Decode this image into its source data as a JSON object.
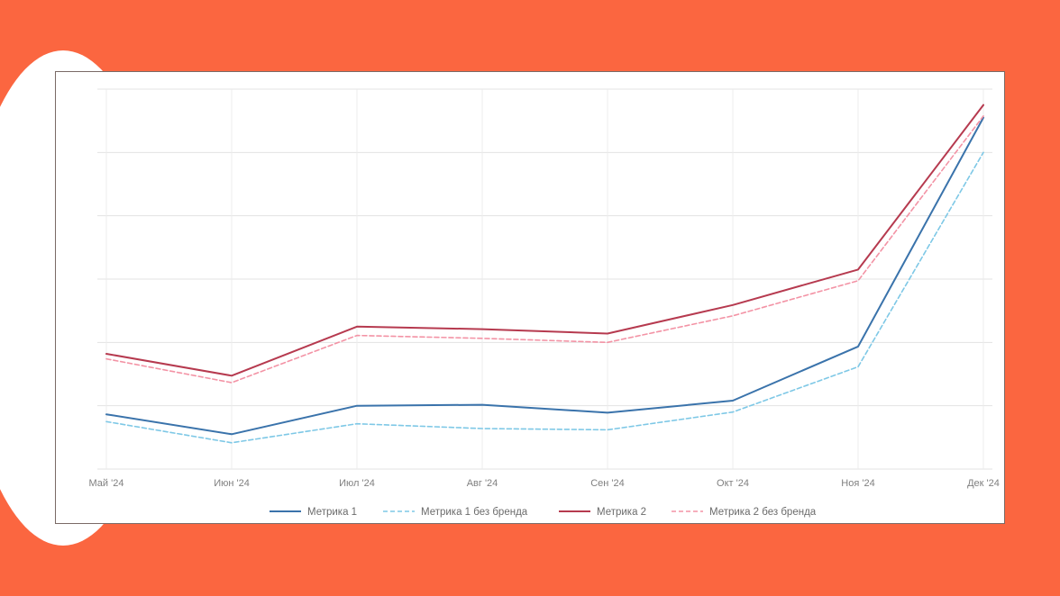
{
  "chart_data": {
    "type": "line",
    "categories": [
      "Май '24",
      "Июн '24",
      "Июл '24",
      "Авг '24",
      "Сен '24",
      "Окт '24",
      "Ноя '24",
      "Дек '24"
    ],
    "ylim": [
      0,
      120
    ],
    "grid": true,
    "legend_position": "bottom",
    "series": [
      {
        "name": "Метрика 1",
        "color": "#3a73ab",
        "dashed": false,
        "values": [
          17.3,
          11,
          20,
          20.3,
          17.8,
          21.6,
          38.7,
          111
        ]
      },
      {
        "name": "Метрика 1 без бренда",
        "color": "#7ec8e6",
        "dashed": true,
        "values": [
          15,
          8.3,
          14.3,
          12.8,
          12.4,
          18,
          32.3,
          100
        ]
      },
      {
        "name": "Метрика 2",
        "color": "#b63a4f",
        "dashed": false,
        "values": [
          36.4,
          29.5,
          45,
          44.2,
          42.8,
          51.8,
          63,
          115
        ]
      },
      {
        "name": "Метрика 2 без бренда",
        "color": "#f393a5",
        "dashed": true,
        "values": [
          34.8,
          27.3,
          42.2,
          41.3,
          40,
          48.4,
          59.5,
          111.5
        ]
      }
    ]
  }
}
